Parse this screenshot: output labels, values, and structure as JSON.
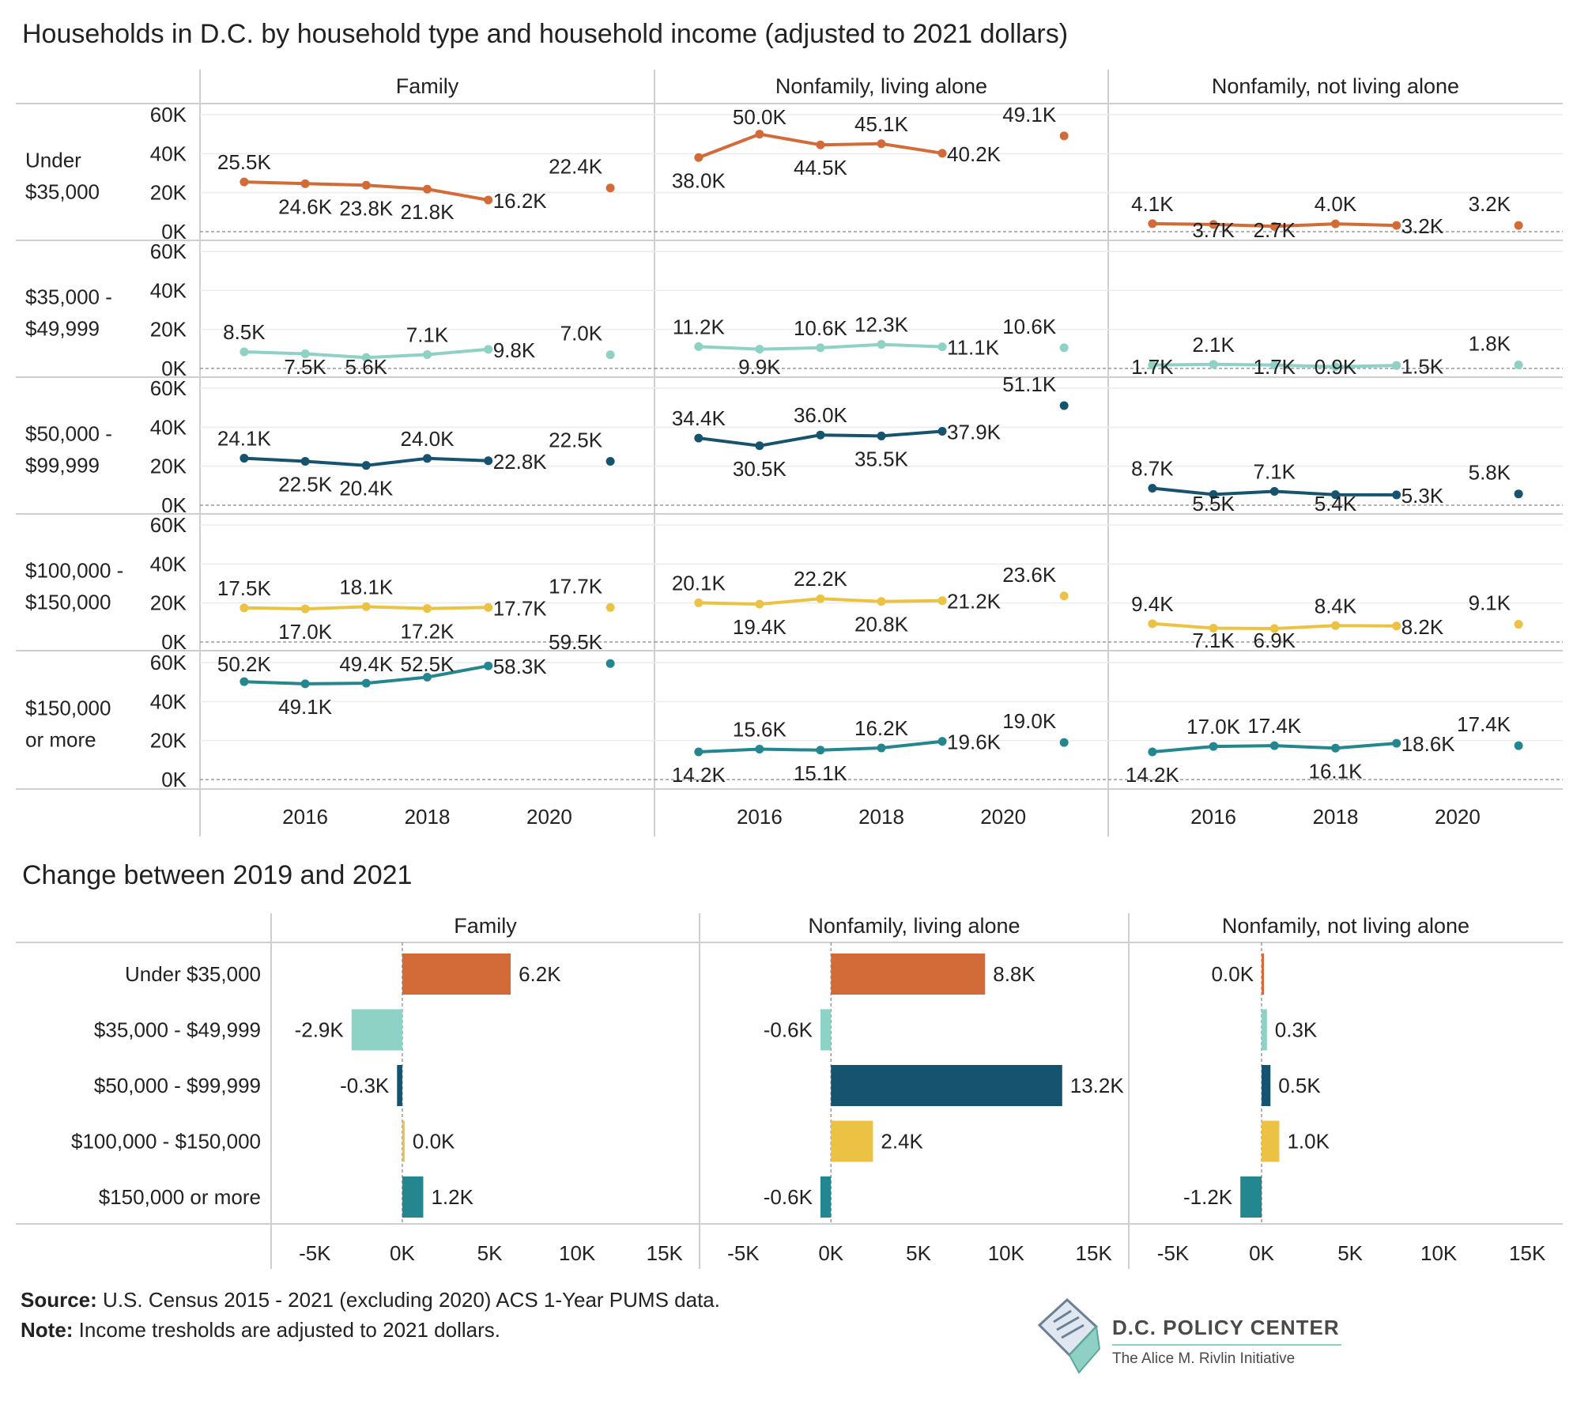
{
  "titles": {
    "main": "Households in D.C. by household type and household income (adjusted to 2021 dollars)",
    "change": "Change between 2019 and 2021"
  },
  "footer": {
    "source_label": "Source:",
    "source_text": "U.S. Census 2015 - 2021 (excluding 2020) ACS 1-Year PUMS data.",
    "note_label": "Note:",
    "note_text": "Income tresholds are adjusted to 2021 dollars."
  },
  "logo": {
    "name": "D.C. POLICY CENTER",
    "tagline": "The Alice M. Rivlin Initiative"
  },
  "chart_data": [
    {
      "type": "line",
      "title": "Households in D.C. by household type and household income (adjusted to 2021 dollars)",
      "columns": [
        "Family",
        "Nonfamily, living alone",
        "Nonfamily, not living alone"
      ],
      "rows": [
        {
          "label": [
            "Under",
            "$35,000"
          ],
          "color": "#d36b39"
        },
        {
          "label": [
            "$35,000 -",
            "$49,999"
          ],
          "color": "#8ed1c5"
        },
        {
          "label": [
            "$50,000 -",
            "$99,999"
          ],
          "color": "#16536f"
        },
        {
          "label": [
            "$100,000 -",
            "$150,000"
          ],
          "color": "#ecc244"
        },
        {
          "label": [
            "$150,000",
            "or more"
          ],
          "color": "#24868f"
        }
      ],
      "x": [
        2015,
        2016,
        2017,
        2018,
        2019,
        2021
      ],
      "x_ticks": [
        "2016",
        "2018",
        "2020"
      ],
      "x_tick_values": [
        2016,
        2018,
        2020
      ],
      "xlim": [
        2014.6,
        2021.4
      ],
      "y_ticks": [
        "0K",
        "20K",
        "40K",
        "60K"
      ],
      "y_tick_values": [
        0,
        20000,
        40000,
        60000
      ],
      "ylim": [
        0,
        60000
      ],
      "gap_before_last": true,
      "values": [
        [
          [
            25500,
            24600,
            23800,
            21800,
            16200,
            22400
          ],
          [
            38000,
            50000,
            44500,
            45100,
            40200,
            49100
          ],
          [
            4100,
            3700,
            2700,
            4000,
            3200,
            3200
          ]
        ],
        [
          [
            8500,
            7500,
            5600,
            7100,
            9800,
            7000
          ],
          [
            11200,
            9900,
            10600,
            12300,
            11100,
            10600
          ],
          [
            1700,
            2100,
            1700,
            900,
            1500,
            1800
          ]
        ],
        [
          [
            24100,
            22500,
            20400,
            24000,
            22800,
            22500
          ],
          [
            34400,
            30500,
            36000,
            35500,
            37900,
            51100
          ],
          [
            8700,
            5500,
            7100,
            5400,
            5300,
            5800
          ]
        ],
        [
          [
            17500,
            17000,
            18100,
            17200,
            17700,
            17700
          ],
          [
            20100,
            19400,
            22200,
            20800,
            21200,
            23600
          ],
          [
            9400,
            7100,
            6900,
            8400,
            8200,
            9100
          ]
        ],
        [
          [
            50200,
            49100,
            49400,
            52500,
            58300,
            59500
          ],
          [
            14200,
            15600,
            15100,
            16200,
            19600,
            19000
          ],
          [
            14200,
            17000,
            17400,
            16100,
            18600,
            17400
          ]
        ]
      ],
      "labels": [
        [
          [
            "25.5K",
            "24.6K",
            "23.8K",
            "21.8K",
            "16.2K",
            "22.4K"
          ],
          [
            "38.0K",
            "50.0K",
            "44.5K",
            "45.1K",
            "40.2K",
            "49.1K"
          ],
          [
            "4.1K",
            "3.7K",
            "2.7K",
            "4.0K",
            "3.2K",
            "3.2K"
          ]
        ],
        [
          [
            "8.5K",
            "7.5K",
            "5.6K",
            "7.1K",
            "9.8K",
            "7.0K"
          ],
          [
            "11.2K",
            "9.9K",
            "10.6K",
            "12.3K",
            "11.1K",
            "10.6K"
          ],
          [
            "1.7K",
            "2.1K",
            "1.7K",
            "0.9K",
            "1.5K",
            "1.8K"
          ]
        ],
        [
          [
            "24.1K",
            "22.5K",
            "20.4K",
            "24.0K",
            "22.8K",
            "22.5K"
          ],
          [
            "34.4K",
            "30.5K",
            "36.0K",
            "35.5K",
            "37.9K",
            "51.1K"
          ],
          [
            "8.7K",
            "5.5K",
            "7.1K",
            "5.4K",
            "5.3K",
            "5.8K"
          ]
        ],
        [
          [
            "17.5K",
            "17.0K",
            "18.1K",
            "17.2K",
            "17.7K",
            "17.7K"
          ],
          [
            "20.1K",
            "19.4K",
            "22.2K",
            "20.8K",
            "21.2K",
            "23.6K"
          ],
          [
            "9.4K",
            "7.1K",
            "6.9K",
            "8.4K",
            "8.2K",
            "9.1K"
          ]
        ],
        [
          [
            "50.2K",
            "49.1K",
            "49.4K",
            "52.5K",
            "58.3K",
            "59.5K"
          ],
          [
            "14.2K",
            "15.6K",
            "15.1K",
            "16.2K",
            "19.6K",
            "19.0K"
          ],
          [
            "14.2K",
            "17.0K",
            "17.4K",
            "16.1K",
            "18.6K",
            "17.4K"
          ]
        ]
      ]
    },
    {
      "type": "bar",
      "orientation": "horizontal",
      "title": "Change between 2019 and 2021",
      "columns": [
        "Family",
        "Nonfamily, living alone",
        "Nonfamily, not living alone"
      ],
      "categories": [
        "Under $35,000",
        "$35,000 - $49,999",
        "$50,000 - $99,999",
        "$100,000 - $150,000",
        "$150,000 or more"
      ],
      "colors": [
        "#d36b39",
        "#8ed1c5",
        "#16536f",
        "#ecc244",
        "#24868f"
      ],
      "x_ticks": [
        "-5K",
        "0K",
        "5K",
        "10K",
        "15K"
      ],
      "x_tick_values": [
        -5000,
        0,
        5000,
        10000,
        15000
      ],
      "xlim": [
        -7500,
        17000
      ],
      "values": [
        [
          6200,
          -2900,
          -300,
          0,
          1200
        ],
        [
          8800,
          -600,
          13200,
          2400,
          -600
        ],
        [
          0,
          300,
          500,
          1000,
          -1200
        ]
      ],
      "labels": [
        [
          "6.2K",
          "-2.9K",
          "-0.3K",
          "0.0K",
          "1.2K"
        ],
        [
          "8.8K",
          "-0.6K",
          "13.2K",
          "2.4K",
          "-0.6K"
        ],
        [
          "0.0K",
          "0.3K",
          "0.5K",
          "1.0K",
          "-1.2K"
        ]
      ]
    }
  ]
}
